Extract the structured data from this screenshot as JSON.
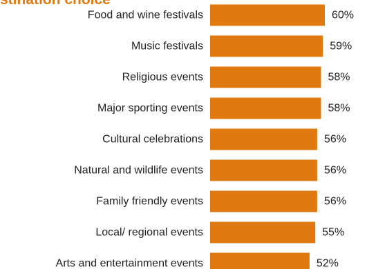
{
  "colors": {
    "bar": "#E07A10",
    "title": "#E07A10",
    "text": "#222222"
  },
  "chart_data": {
    "type": "bar",
    "orientation": "horizontal",
    "title": "stination choice",
    "categories": [
      "Food and wine festivals",
      "Music festivals",
      "Religious events",
      "Major sporting events",
      "Cultural celebrations",
      "Natural and wildlife events",
      "Family friendly events",
      "Local/ regional events",
      "Arts and entertainment events"
    ],
    "values": [
      60,
      59,
      58,
      58,
      56,
      56,
      56,
      55,
      52
    ],
    "data_labels": [
      "60%",
      "59%",
      "58%",
      "58%",
      "56%",
      "56%",
      "56%",
      "55%",
      "52%"
    ],
    "unit": "%",
    "xlim": [
      0,
      60
    ],
    "grid": false,
    "legend": "none"
  }
}
